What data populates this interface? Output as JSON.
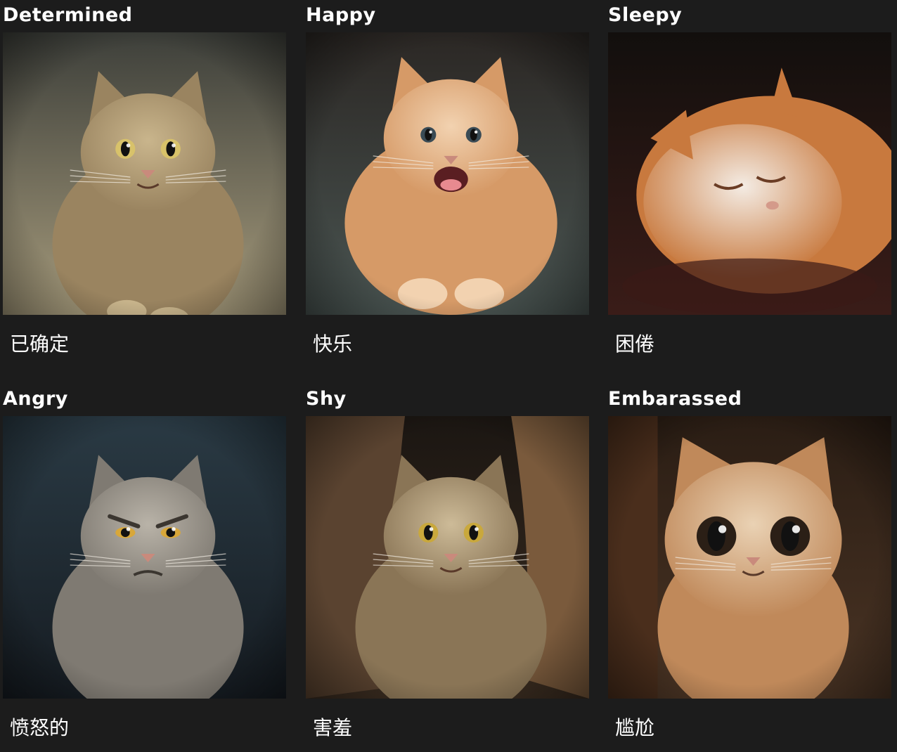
{
  "cards": [
    {
      "title": "Determined",
      "caption": "已确定",
      "fur": "#9a8460",
      "fur_light": "#c9b58c",
      "bg_top": "#3d3f3a",
      "bg_bottom": "#a59a7b",
      "eye": "#d8c26a"
    },
    {
      "title": "Happy",
      "caption": "快乐",
      "fur": "#d69a67",
      "fur_light": "#f2d2b0",
      "bg_top": "#2b2724",
      "bg_bottom": "#4a5552",
      "eye": "#3a4b55"
    },
    {
      "title": "Sleepy",
      "caption": "困倦",
      "fur": "#c8793e",
      "fur_light": "#f4ece4",
      "bg_top": "#120f0d",
      "bg_bottom": "#3a1c18",
      "eye": "#6b3d25"
    },
    {
      "title": "Angry",
      "caption": "愤怒的",
      "fur": "#7f7a72",
      "fur_light": "#b9b3a8",
      "bg_top": "#2a3a44",
      "bg_bottom": "#161c22",
      "eye": "#d8a73a"
    },
    {
      "title": "Shy",
      "caption": "害羞",
      "fur": "#8a7556",
      "fur_light": "#cdbb98",
      "bg_top": "#1b1612",
      "bg_bottom": "#3a2c20",
      "eye": "#c9a83c"
    },
    {
      "title": "Embarassed",
      "caption": "尴尬",
      "fur": "#c0895a",
      "fur_light": "#ead2b4",
      "bg_top": "#2a1d14",
      "bg_bottom": "#4a3424",
      "eye": "#2b1f16"
    }
  ]
}
